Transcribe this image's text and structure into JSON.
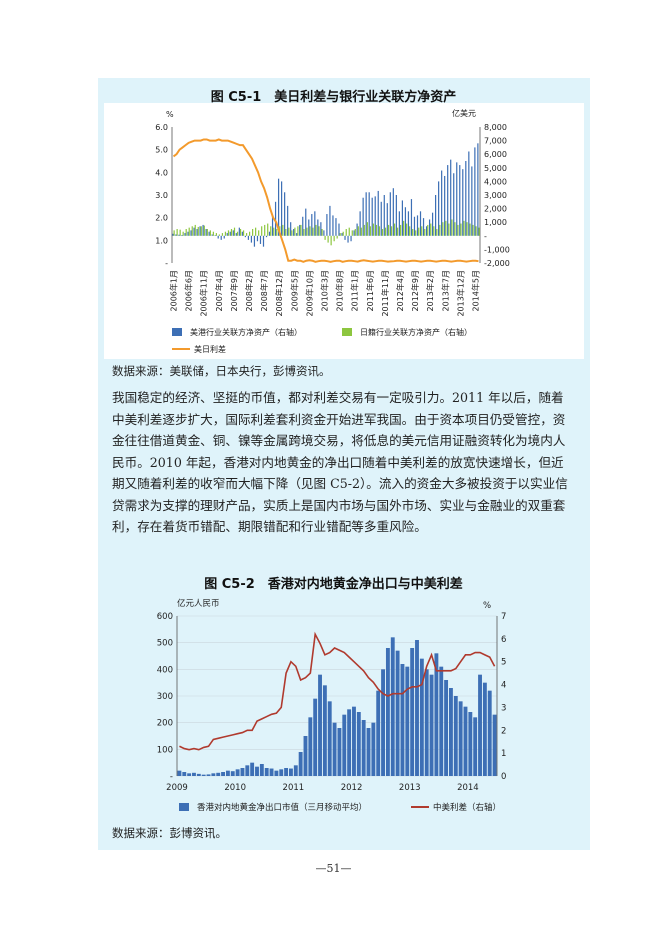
{
  "chart_data": [
    {
      "type": "bar-line",
      "title": "图 C5-1　美日利差与银行业关联方净资产",
      "ylabel_left": "%",
      "ylabel_right": "亿美元",
      "ylim_left": [
        0,
        6.0
      ],
      "ylim_right": [
        -2000,
        8000
      ],
      "yticks_left": [
        "-",
        "1.0",
        "2.0",
        "3.0",
        "4.0",
        "5.0",
        "6.0"
      ],
      "yticks_right": [
        "-2,000",
        "-1,000",
        "-",
        "1,000",
        "2,000",
        "3,000",
        "4,000",
        "5,000",
        "6,000",
        "7,000",
        "8,000"
      ],
      "x_tick_labels": [
        "2006年1月",
        "2006年6月",
        "2006年11月",
        "2007年4月",
        "2007年9月",
        "2008年2月",
        "2008年7月",
        "2008年12月",
        "2009年5月",
        "2009年10月",
        "2010年3月",
        "2010年8月",
        "2011年1月",
        "2011年6月",
        "2011年11月",
        "2012年4月",
        "2012年9月",
        "2013年2月",
        "2013年7月",
        "2013年12月",
        "2014年5月"
      ],
      "months": 102,
      "series": [
        {
          "name": "美港行业关联方净资产（右轴）",
          "axis": "right",
          "kind": "bar",
          "color": "#3d6fb5",
          "values": [
            150,
            100,
            80,
            60,
            200,
            300,
            400,
            600,
            500,
            700,
            800,
            500,
            300,
            100,
            50,
            -200,
            -300,
            -200,
            200,
            300,
            400,
            200,
            600,
            300,
            -100,
            -300,
            -500,
            -800,
            -400,
            -600,
            -800,
            -100,
            300,
            1500,
            2500,
            4200,
            4000,
            3200,
            2200,
            1000,
            500,
            200,
            800,
            1400,
            2000,
            1200,
            1600,
            1800,
            1200,
            1000,
            400,
            1600,
            2200,
            1500,
            1300,
            900,
            200,
            -300,
            -500,
            -400,
            400,
            900,
            1800,
            2800,
            3200,
            3200,
            2800,
            2900,
            3300,
            2500,
            3000,
            2400,
            3200,
            3500,
            3000,
            1800,
            2600,
            2100,
            1800,
            2700,
            1400,
            1500,
            1800,
            1300,
            700,
            1200,
            1700,
            3000,
            4000,
            4800,
            4400,
            5200,
            5600,
            4600,
            5400,
            5200,
            4900,
            5500,
            6200,
            5100,
            6500,
            6800
          ]
        },
        {
          "name": "日籍行业关联方净资产（右轴）",
          "axis": "right",
          "kind": "bar",
          "color": "#8dc63f",
          "values": [
            400,
            500,
            450,
            300,
            500,
            600,
            700,
            800,
            650,
            700,
            750,
            500,
            400,
            300,
            200,
            100,
            200,
            300,
            400,
            500,
            600,
            300,
            500,
            400,
            200,
            300,
            500,
            600,
            400,
            700,
            800,
            900,
            700,
            600,
            500,
            700,
            800,
            500,
            600,
            400,
            600,
            700,
            800,
            500,
            600,
            700,
            600,
            800,
            700,
            500,
            -300,
            -500,
            -700,
            -400,
            -200,
            200,
            300,
            500,
            600,
            400,
            500,
            700,
            600,
            800,
            1000,
            700,
            900,
            800,
            700,
            500,
            600,
            800,
            700,
            900,
            600,
            800,
            1100,
            900,
            700,
            500,
            400,
            600,
            700,
            500,
            800,
            900,
            700,
            500,
            800,
            1000,
            1100,
            900,
            1200,
            1000,
            800,
            900,
            1100,
            1000,
            900,
            800,
            700,
            600
          ]
        },
        {
          "name": "美日利差",
          "axis": "left",
          "kind": "line",
          "color": "#f39a2c",
          "values": [
            4.7,
            4.8,
            5.0,
            5.1,
            5.2,
            5.3,
            5.35,
            5.4,
            5.4,
            5.4,
            5.45,
            5.45,
            5.4,
            5.4,
            5.4,
            5.45,
            5.4,
            5.4,
            5.4,
            5.35,
            5.3,
            5.25,
            5.2,
            5.2,
            5.0,
            4.8,
            4.6,
            4.3,
            4.0,
            3.6,
            3.3,
            2.9,
            2.4,
            2.0,
            1.8,
            1.4,
            1.0,
            0.6,
            0.1,
            0.1,
            0.15,
            0.1,
            0.1,
            0.05,
            0.1,
            0.12,
            0.1,
            0.05,
            0.08,
            0.1,
            0.1,
            0.08,
            0.05,
            0.08,
            0.1,
            0.1,
            0.05,
            0.08,
            0.1,
            0.1,
            0.08,
            0.06,
            0.1,
            0.12,
            0.1,
            0.08,
            0.06,
            0.08,
            0.1,
            0.1,
            0.08,
            0.06,
            0.07,
            0.08,
            0.1,
            0.1,
            0.08,
            0.06,
            0.08,
            0.1,
            0.1,
            0.08,
            0.06,
            0.08,
            0.1,
            0.1,
            0.08,
            0.06,
            0.08,
            0.1,
            0.1,
            0.08,
            0.06,
            0.08,
            0.1,
            0.1,
            0.08,
            0.06,
            0.08,
            0.1,
            0.1,
            0.08
          ]
        }
      ],
      "legend_placement": "bottom",
      "source_note": "数据来源：美联储，日本央行，彭博资讯。"
    },
    {
      "type": "bar-line",
      "title": "图 C5-2　香港对内地黄金净出口与中美利差",
      "ylabel_left": "亿元人民币",
      "ylabel_right": "%",
      "ylim_left": [
        0,
        600
      ],
      "ylim_right": [
        0,
        7
      ],
      "yticks_left": [
        "-",
        "100",
        "200",
        "300",
        "400",
        "500",
        "600"
      ],
      "yticks_right": [
        "0",
        "1",
        "2",
        "3",
        "4",
        "5",
        "6",
        "7"
      ],
      "x_tick_labels": [
        "2009",
        "2010",
        "2011",
        "2012",
        "2013",
        "2014"
      ],
      "x_tick_positions": [
        0,
        12,
        24,
        36,
        48,
        60
      ],
      "months": 66,
      "series": [
        {
          "name": "香港对内地黄金净出口市值（三月移动平均）",
          "axis": "left",
          "kind": "bar",
          "color": "#3d6fb5",
          "values": [
            20,
            15,
            10,
            12,
            8,
            5,
            6,
            10,
            12,
            15,
            20,
            18,
            25,
            30,
            40,
            50,
            35,
            45,
            30,
            28,
            20,
            25,
            30,
            28,
            40,
            90,
            150,
            220,
            290,
            380,
            340,
            280,
            200,
            180,
            230,
            250,
            260,
            240,
            210,
            180,
            200,
            320,
            400,
            480,
            520,
            470,
            420,
            410,
            480,
            510,
            440,
            400,
            380,
            460,
            410,
            360,
            330,
            300,
            280,
            260,
            240,
            220,
            380,
            350,
            320,
            230
          ]
        },
        {
          "name": "中美利差（右轴）",
          "axis": "right",
          "kind": "line",
          "color": "#b03a2e",
          "values": [
            1.3,
            1.2,
            1.15,
            1.2,
            1.15,
            1.25,
            1.3,
            1.6,
            1.65,
            1.7,
            1.75,
            1.8,
            1.85,
            1.9,
            2.0,
            2.0,
            2.4,
            2.5,
            2.6,
            2.7,
            2.75,
            3.0,
            4.5,
            5.0,
            4.8,
            4.2,
            4.3,
            4.5,
            6.2,
            5.8,
            5.3,
            5.4,
            5.6,
            5.5,
            5.4,
            5.2,
            5.0,
            4.8,
            4.6,
            4.3,
            4.1,
            3.8,
            3.6,
            3.5,
            3.6,
            3.6,
            3.6,
            3.8,
            3.9,
            3.9,
            4.0,
            4.8,
            5.3,
            4.6,
            4.6,
            4.6,
            4.6,
            4.7,
            5.0,
            5.3,
            5.3,
            5.4,
            5.4,
            5.3,
            5.2,
            4.8
          ]
        }
      ],
      "legend_placement": "bottom",
      "source_note": "数据来源：彭博资讯。"
    }
  ],
  "body": {
    "paragraph": "我国稳定的经济、坚挺的币值，都对利差交易有一定吸引力。2011 年以后，随着中美利差逐步扩大，国际利差套利资金开始进军我国。由于资本项目仍受管控，资金往往借道黄金、铜、镍等金属跨境交易，将低息的美元信用证融资转化为境内人民币。2010 年起，香港对内地黄金的净出口随着中美利差的放宽快速增长，但近期又随着利差的收窄而大幅下降（见图 C5-2）。流入的资金大多被投资于以实业信贷需求为支撑的理财产品，实质上是国内市场与国外市场、实业与金融业的双重套利，存在着货币错配、期限错配和行业错配等多重风险。"
  },
  "page_number": "—51—"
}
